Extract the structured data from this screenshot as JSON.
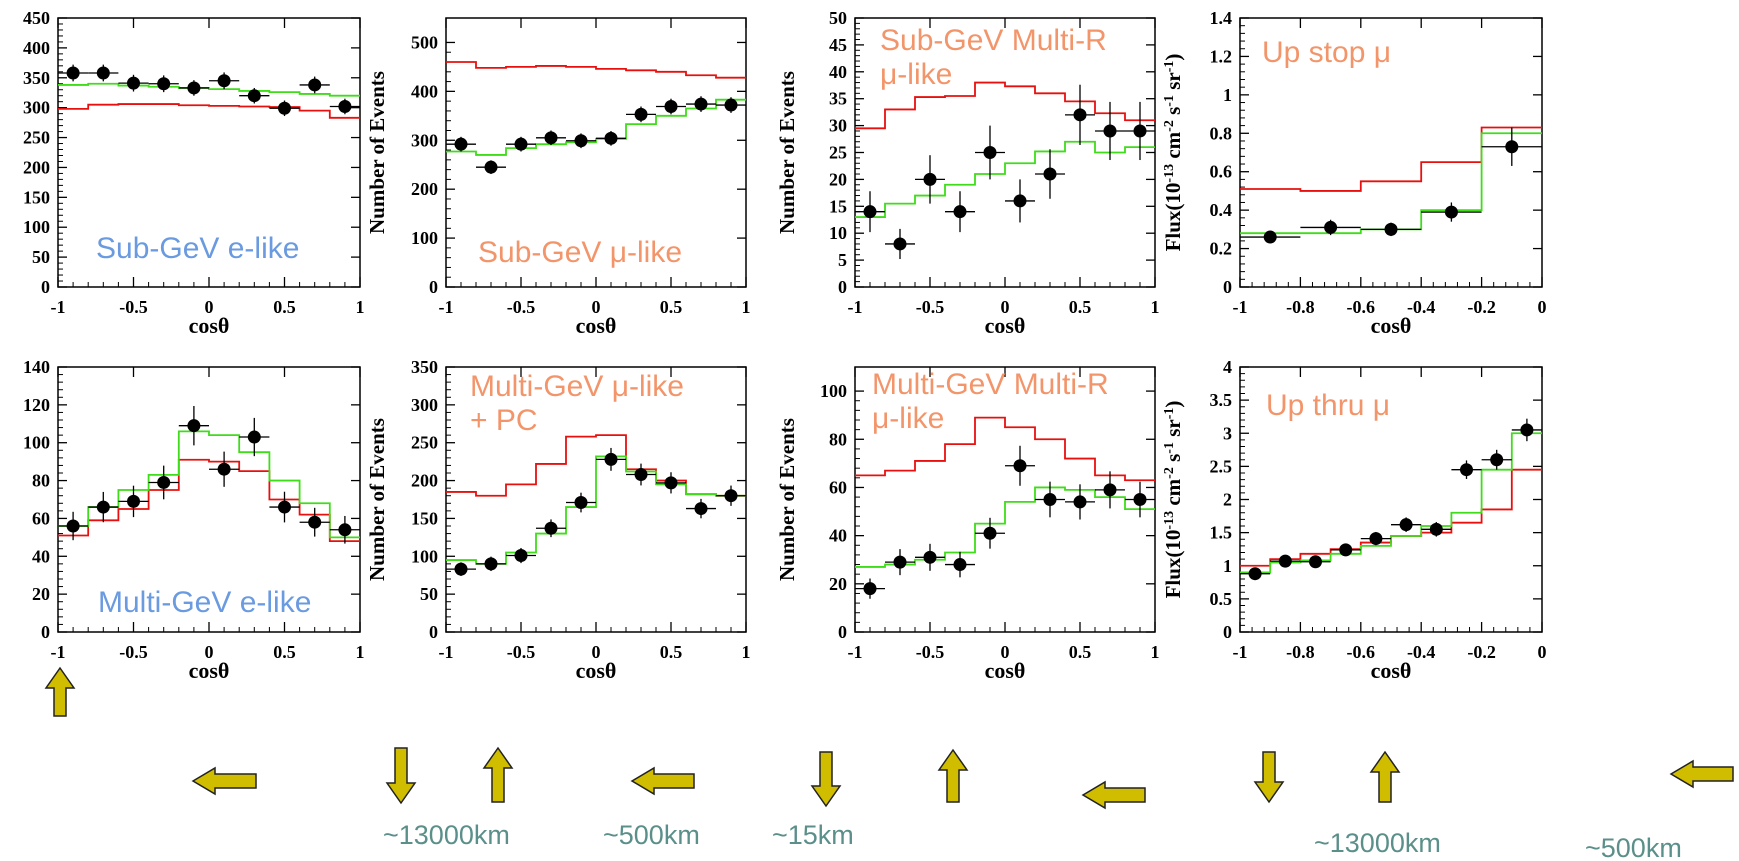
{
  "colors": {
    "data": "#000000",
    "no_osc": "#e8100f",
    "osc": "#3fdc1a",
    "label_blue": "#6a9ae0",
    "label_orange": "#f3956a",
    "arrow_fill": "#d1bd00",
    "arrow_stroke": "#222222",
    "distance": "#5b8f8a"
  },
  "chart_data": [
    {
      "id": "p1",
      "type": "line",
      "title": "Sub-GeV e-like",
      "title_color": "label_blue",
      "xlabel": "cosθ",
      "ylabel": "",
      "xlim": [
        -1,
        1
      ],
      "ylim": [
        0,
        450
      ],
      "xticks": [
        -1,
        -0.5,
        0,
        0.5,
        1
      ],
      "xtick_labels": [
        "-1",
        "-0.5",
        "0",
        "0.5",
        "1"
      ],
      "yticks": [
        0,
        50,
        100,
        150,
        200,
        250,
        300,
        350,
        400,
        450
      ],
      "ytick_labels": [
        "0",
        "50",
        "100",
        "150",
        "200",
        "250",
        "300",
        "350",
        "400",
        "450"
      ],
      "bins": [
        -1,
        -0.8,
        -0.6,
        -0.4,
        -0.2,
        0,
        0.2,
        0.4,
        0.6,
        0.8,
        1
      ],
      "no_oscillation": [
        298,
        305,
        306,
        306,
        304,
        303,
        302,
        301,
        295,
        283
      ],
      "oscillation": [
        338,
        340,
        337,
        335,
        333,
        331,
        328,
        326,
        323,
        320
      ],
      "data_x": [
        -0.9,
        -0.7,
        -0.5,
        -0.3,
        -0.1,
        0.1,
        0.3,
        0.5,
        0.7,
        0.9
      ],
      "data_y": [
        358,
        358,
        341,
        340,
        333,
        345,
        320,
        299,
        338,
        302
      ],
      "data_err": [
        14,
        14,
        14,
        14,
        13,
        14,
        13,
        13,
        14,
        13
      ]
    },
    {
      "id": "p2",
      "type": "line",
      "title": "Sub-GeV μ-like",
      "title_color": "label_orange",
      "xlabel": "cosθ",
      "ylabel": "Number of Events",
      "xlim": [
        -1,
        1
      ],
      "ylim": [
        0,
        550
      ],
      "xticks": [
        -1,
        -0.5,
        0,
        0.5,
        1
      ],
      "xtick_labels": [
        "-1",
        "-0.5",
        "0",
        "0.5",
        "1"
      ],
      "yticks": [
        0,
        100,
        200,
        300,
        400,
        500
      ],
      "ytick_labels": [
        "0",
        "100",
        "200",
        "300",
        "400",
        "500"
      ],
      "bins": [
        -1,
        -0.8,
        -0.6,
        -0.4,
        -0.2,
        0,
        0.2,
        0.4,
        0.6,
        0.8,
        1
      ],
      "no_oscillation": [
        460,
        448,
        450,
        452,
        450,
        446,
        443,
        440,
        433,
        428
      ],
      "oscillation": [
        277,
        270,
        284,
        292,
        296,
        303,
        333,
        350,
        365,
        383
      ],
      "data_x": [
        -0.9,
        -0.7,
        -0.5,
        -0.3,
        -0.1,
        0.1,
        0.3,
        0.5,
        0.7,
        0.9
      ],
      "data_y": [
        292,
        245,
        292,
        305,
        299,
        304,
        353,
        369,
        374,
        372
      ],
      "data_err": [
        15,
        14,
        15,
        15,
        15,
        15,
        16,
        16,
        16,
        16
      ]
    },
    {
      "id": "p3",
      "type": "line",
      "title": "Sub-GeV Multi-R μ-like",
      "title_lines": [
        "Sub-GeV Multi-R",
        "μ-like"
      ],
      "title_color": "label_orange",
      "xlabel": "cosθ",
      "ylabel": "Number of Events",
      "xlim": [
        -1,
        1
      ],
      "ylim": [
        0,
        50
      ],
      "xticks": [
        -1,
        -0.5,
        0,
        0.5,
        1
      ],
      "xtick_labels": [
        "-1",
        "-0.5",
        "0",
        "0.5",
        "1"
      ],
      "yticks": [
        0,
        5,
        10,
        15,
        20,
        25,
        30,
        35,
        40,
        45,
        50
      ],
      "ytick_labels": [
        "0",
        "5",
        "10",
        "15",
        "20",
        "25",
        "30",
        "35",
        "40",
        "45",
        "50"
      ],
      "bins": [
        -1,
        -0.8,
        -0.6,
        -0.4,
        -0.2,
        0,
        0.2,
        0.4,
        0.6,
        0.8,
        1
      ],
      "no_oscillation": [
        29.5,
        33,
        35.3,
        35.5,
        38,
        37.3,
        36,
        34.5,
        32.3,
        31
      ],
      "oscillation": [
        13,
        15.5,
        17,
        19,
        21,
        23,
        25.2,
        27,
        25,
        26
      ],
      "data_x": [
        -0.9,
        -0.7,
        -0.5,
        -0.3,
        -0.1,
        0.1,
        0.3,
        0.5,
        0.7,
        0.9
      ],
      "data_y": [
        14,
        8,
        20,
        14,
        25,
        16,
        21,
        32,
        29,
        29
      ],
      "data_err": [
        3.8,
        2.8,
        4.5,
        3.8,
        5,
        4,
        4.6,
        5.6,
        5.4,
        5.4
      ]
    },
    {
      "id": "p4",
      "type": "line",
      "title": "Up stop μ",
      "title_color": "label_orange",
      "xlabel": "cosθ",
      "ylabel": "Flux(10^-13 cm^-2 s^-1 sr^-1)",
      "xlim": [
        -1,
        0
      ],
      "ylim": [
        0,
        1.4
      ],
      "xticks": [
        -1,
        -0.8,
        -0.6,
        -0.4,
        -0.2,
        0
      ],
      "xtick_labels": [
        "-1",
        "-0.8",
        "-0.6",
        "-0.4",
        "-0.2",
        "0"
      ],
      "yticks": [
        0,
        0.2,
        0.4,
        0.6,
        0.8,
        1,
        1.2,
        1.4
      ],
      "ytick_labels": [
        "0",
        "0.2",
        "0.4",
        "0.6",
        "0.8",
        "1",
        "1.2",
        "1.4"
      ],
      "bins": [
        -1,
        -0.8,
        -0.6,
        -0.4,
        -0.2,
        0
      ],
      "no_oscillation": [
        0.51,
        0.5,
        0.55,
        0.65,
        0.83
      ],
      "oscillation": [
        0.28,
        0.28,
        0.3,
        0.4,
        0.8
      ],
      "data_x": [
        -0.9,
        -0.7,
        -0.5,
        -0.3,
        -0.1
      ],
      "data_y": [
        0.26,
        0.31,
        0.3,
        0.39,
        0.73
      ],
      "data_err": [
        0.03,
        0.04,
        0.035,
        0.05,
        0.1
      ],
      "data_xerr": [
        0.1,
        0.1,
        0.1,
        0.1,
        0.1
      ]
    },
    {
      "id": "p5",
      "type": "line",
      "title": "Multi-GeV e-like",
      "title_color": "label_blue",
      "xlabel": "cosθ",
      "ylabel": "",
      "xlim": [
        -1,
        1
      ],
      "ylim": [
        0,
        140
      ],
      "xticks": [
        -1,
        -0.5,
        0,
        0.5,
        1
      ],
      "xtick_labels": [
        "-1",
        "-0.5",
        "0",
        "0.5",
        "1"
      ],
      "yticks": [
        0,
        20,
        40,
        60,
        80,
        100,
        120,
        140
      ],
      "ytick_labels": [
        "0",
        "20",
        "40",
        "60",
        "80",
        "100",
        "120",
        "140"
      ],
      "bins": [
        -1,
        -0.8,
        -0.6,
        -0.4,
        -0.2,
        0,
        0.2,
        0.4,
        0.6,
        0.8,
        1
      ],
      "no_oscillation": [
        51,
        59,
        65,
        75,
        91,
        90,
        85,
        70,
        62,
        48
      ],
      "oscillation": [
        56,
        66,
        75,
        83,
        106,
        104,
        95,
        80,
        68,
        50
      ],
      "data_x": [
        -0.9,
        -0.7,
        -0.5,
        -0.3,
        -0.1,
        0.1,
        0.3,
        0.5,
        0.7,
        0.9
      ],
      "data_y": [
        56,
        66,
        69,
        79,
        109,
        86,
        103,
        66,
        58,
        54
      ],
      "data_err": [
        7.5,
        8,
        8.3,
        8.9,
        10.4,
        9.3,
        10.1,
        8.1,
        7.6,
        7.3
      ]
    },
    {
      "id": "p6",
      "type": "line",
      "title": "Multi-GeV μ-like + PC",
      "title_lines": [
        "Multi-GeV μ-like",
        "+ PC"
      ],
      "title_color": "label_orange",
      "xlabel": "cosθ",
      "ylabel": "Number of Events",
      "xlim": [
        -1,
        1
      ],
      "ylim": [
        0,
        350
      ],
      "xticks": [
        -1,
        -0.5,
        0,
        0.5,
        1
      ],
      "xtick_labels": [
        "-1",
        "-0.5",
        "0",
        "0.5",
        "1"
      ],
      "yticks": [
        0,
        50,
        100,
        150,
        200,
        250,
        300,
        350
      ],
      "ytick_labels": [
        "0",
        "50",
        "100",
        "150",
        "200",
        "250",
        "300",
        "350"
      ],
      "bins": [
        -1,
        -0.8,
        -0.6,
        -0.4,
        -0.2,
        0,
        0.2,
        0.4,
        0.6,
        0.8,
        1
      ],
      "no_oscillation": [
        185,
        180,
        195,
        222,
        258,
        260,
        215,
        200,
        182,
        180
      ],
      "oscillation": [
        95,
        90,
        105,
        130,
        165,
        232,
        212,
        195,
        182,
        180
      ],
      "data_x": [
        -0.9,
        -0.7,
        -0.5,
        -0.3,
        -0.1,
        0.1,
        0.3,
        0.5,
        0.7,
        0.9
      ],
      "data_y": [
        83,
        90,
        101,
        137,
        171,
        228,
        208,
        197,
        163,
        180
      ],
      "data_err": [
        9,
        9.5,
        10,
        11.7,
        13,
        15.1,
        14.4,
        14,
        12.8,
        13.4
      ]
    },
    {
      "id": "p7",
      "type": "line",
      "title": "Multi-GeV Multi-R μ-like",
      "title_lines": [
        "Multi-GeV Multi-R",
        "μ-like"
      ],
      "title_color": "label_orange",
      "xlabel": "cosθ",
      "ylabel": "Number of Events",
      "xlim": [
        -1,
        1
      ],
      "ylim": [
        0,
        110
      ],
      "xticks": [
        -1,
        -0.5,
        0,
        0.5,
        1
      ],
      "xtick_labels": [
        "-1",
        "-0.5",
        "0",
        "0.5",
        "1"
      ],
      "yticks": [
        0,
        20,
        40,
        60,
        80,
        100
      ],
      "ytick_labels": [
        "0",
        "20",
        "40",
        "60",
        "80",
        "100"
      ],
      "bins": [
        -1,
        -0.8,
        -0.6,
        -0.4,
        -0.2,
        0,
        0.2,
        0.4,
        0.6,
        0.8,
        1
      ],
      "no_oscillation": [
        65,
        67,
        71,
        78,
        89,
        85,
        80,
        72,
        65,
        63
      ],
      "oscillation": [
        27,
        28,
        30,
        33,
        45,
        54,
        60,
        59,
        56,
        51
      ],
      "data_x": [
        -0.9,
        -0.7,
        -0.5,
        -0.3,
        -0.1,
        0.1,
        0.3,
        0.5,
        0.7,
        0.9
      ],
      "data_y": [
        18,
        29,
        31,
        28,
        41,
        69,
        55,
        54,
        59,
        55
      ],
      "data_err": [
        4.2,
        5.4,
        5.6,
        5.3,
        6.4,
        8.3,
        7.4,
        7.3,
        7.7,
        7.4
      ]
    },
    {
      "id": "p8",
      "type": "line",
      "title": "Up thru μ",
      "title_color": "label_orange",
      "xlabel": "cosθ",
      "ylabel": "Flux(10^-13 cm^-2 s^-1 sr^-1)",
      "xlim": [
        -1,
        0
      ],
      "ylim": [
        0,
        4
      ],
      "xticks": [
        -1,
        -0.8,
        -0.6,
        -0.4,
        -0.2,
        0
      ],
      "xtick_labels": [
        "-1",
        "-0.8",
        "-0.6",
        "-0.4",
        "-0.2",
        "0"
      ],
      "yticks": [
        0,
        0.5,
        1,
        1.5,
        2,
        2.5,
        3,
        3.5,
        4
      ],
      "ytick_labels": [
        "0",
        "0.5",
        "1",
        "1.5",
        "2",
        "2.5",
        "3",
        "3.5",
        "4"
      ],
      "bins": [
        -1,
        -0.9,
        -0.8,
        -0.7,
        -0.6,
        -0.5,
        -0.4,
        -0.3,
        -0.2,
        -0.1,
        0
      ],
      "no_oscillation": [
        1,
        1.1,
        1.18,
        1.25,
        1.35,
        1.45,
        1.5,
        1.65,
        1.85,
        2.45
      ],
      "oscillation": [
        0.9,
        1.05,
        1.08,
        1.18,
        1.3,
        1.45,
        1.6,
        1.8,
        2.45,
        3
      ],
      "data_x": [
        -0.95,
        -0.85,
        -0.75,
        -0.65,
        -0.55,
        -0.45,
        -0.35,
        -0.25,
        -0.15,
        -0.05
      ],
      "data_y": [
        0.88,
        1.07,
        1.06,
        1.24,
        1.41,
        1.62,
        1.55,
        2.45,
        2.6,
        3.05
      ],
      "data_err": [
        0.07,
        0.08,
        0.08,
        0.09,
        0.1,
        0.11,
        0.11,
        0.14,
        0.15,
        0.17
      ],
      "data_xerr": [
        0.05,
        0.05,
        0.05,
        0.05,
        0.05,
        0.05,
        0.05,
        0.05,
        0.05,
        0.05
      ]
    }
  ],
  "distance_labels": {
    "d1": "~13000km",
    "d2": "~500km",
    "d3": "~15km",
    "d4": "~13000km",
    "d5": "~500km"
  },
  "arrow_icons": [
    "up-arrow-icon",
    "left-arrow-icon",
    "down-arrow-icon"
  ]
}
